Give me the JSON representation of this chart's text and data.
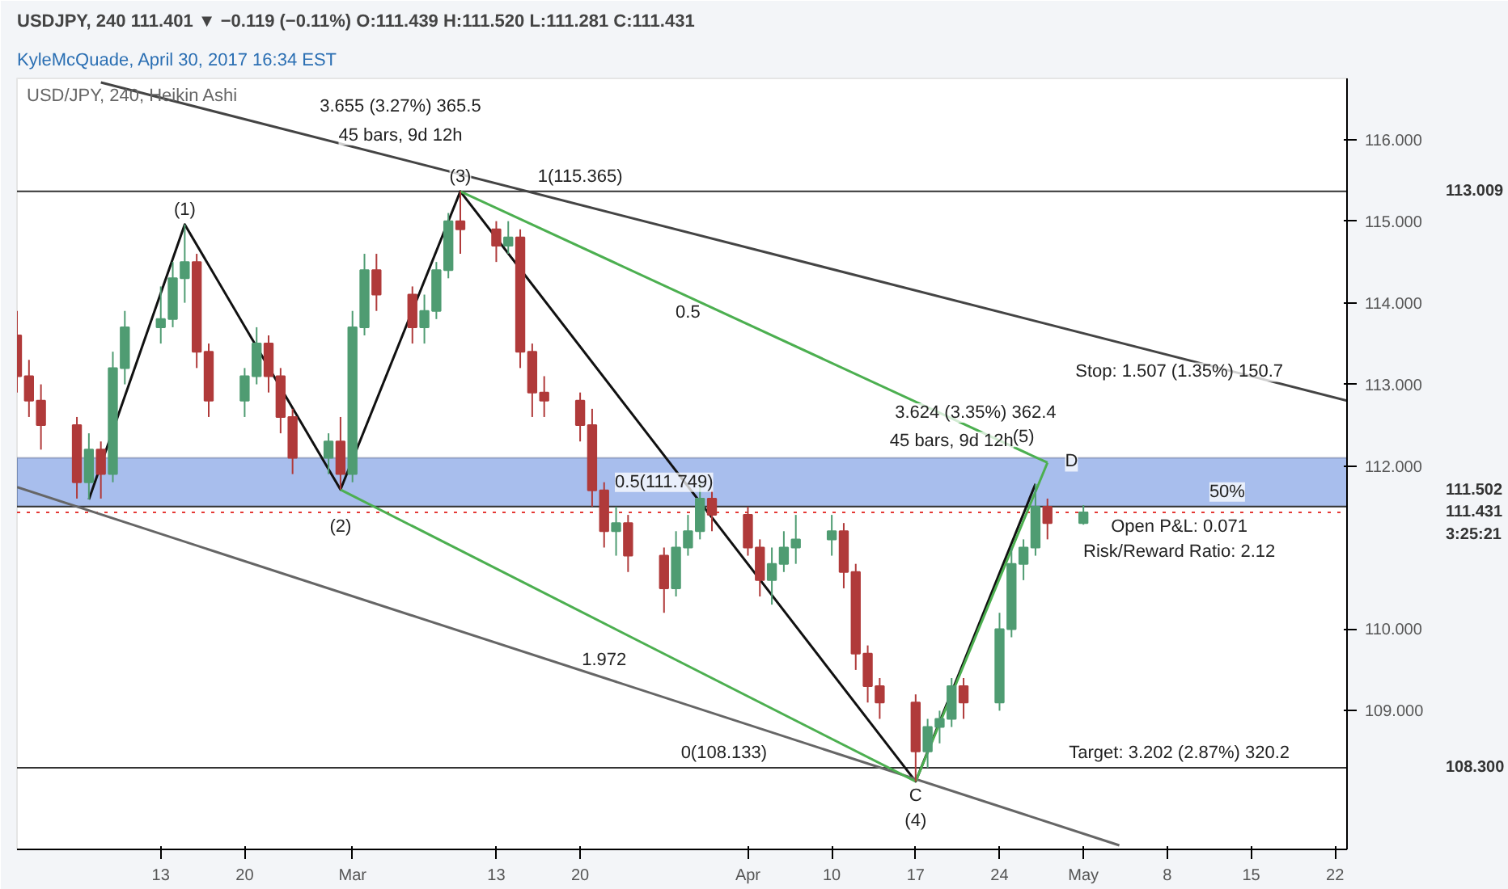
{
  "chart_data": {
    "type": "candlestick",
    "title": "KyleMcQuade, April 30, 2017 16:34 EST",
    "subtitle": "USDJPY, 240 111.401 ▼ −0.119 (−0.11%) O:111.439 H:111.520 L:111.281 C:111.431",
    "x": [
      "2017-02-01",
      "2017-02-02",
      "2017-02-03",
      "2017-02-06",
      "2017-02-07",
      "2017-02-08",
      "2017-02-09",
      "2017-02-10",
      "2017-02-13",
      "2017-02-14",
      "2017-02-15",
      "2017-02-16",
      "2017-02-17",
      "2017-02-20",
      "2017-02-21",
      "2017-02-22",
      "2017-02-23",
      "2017-02-24",
      "2017-02-27",
      "2017-02-28",
      "2017-03-01",
      "2017-03-02",
      "2017-03-03",
      "2017-03-06",
      "2017-03-07",
      "2017-03-08",
      "2017-03-09",
      "2017-03-10",
      "2017-03-13",
      "2017-03-14",
      "2017-03-15",
      "2017-03-16",
      "2017-03-17",
      "2017-03-20",
      "2017-03-21",
      "2017-03-22",
      "2017-03-23",
      "2017-03-24",
      "2017-03-27",
      "2017-03-28",
      "2017-03-29",
      "2017-03-30",
      "2017-03-31",
      "2017-04-03",
      "2017-04-04",
      "2017-04-05",
      "2017-04-06",
      "2017-04-07",
      "2017-04-10",
      "2017-04-11",
      "2017-04-12",
      "2017-04-13",
      "2017-04-14",
      "2017-04-17",
      "2017-04-18",
      "2017-04-19",
      "2017-04-20",
      "2017-04-21",
      "2017-04-24",
      "2017-04-25",
      "2017-04-26",
      "2017-04-27",
      "2017-04-28",
      "2017-05-01"
    ],
    "ohlc": [
      [
        113.6,
        113.9,
        112.9,
        113.1
      ],
      [
        113.1,
        113.3,
        112.6,
        112.8
      ],
      [
        112.8,
        113.0,
        112.2,
        112.5
      ],
      [
        112.5,
        112.6,
        111.6,
        111.8
      ],
      [
        111.8,
        112.4,
        111.59,
        112.2
      ],
      [
        112.2,
        112.3,
        111.6,
        111.9
      ],
      [
        111.9,
        113.4,
        111.8,
        113.2
      ],
      [
        113.2,
        113.9,
        113.0,
        113.7
      ],
      [
        113.7,
        114.2,
        113.5,
        113.8
      ],
      [
        113.8,
        114.5,
        113.7,
        114.3
      ],
      [
        114.3,
        114.96,
        114.0,
        114.5
      ],
      [
        114.5,
        114.6,
        113.2,
        113.4
      ],
      [
        113.4,
        113.5,
        112.6,
        112.8
      ],
      [
        112.8,
        113.2,
        112.6,
        113.1
      ],
      [
        113.1,
        113.7,
        113.0,
        113.5
      ],
      [
        113.5,
        113.6,
        112.9,
        113.1
      ],
      [
        113.1,
        113.2,
        112.4,
        112.6
      ],
      [
        112.6,
        112.7,
        111.9,
        112.1
      ],
      [
        112.1,
        112.4,
        111.9,
        112.3
      ],
      [
        112.3,
        112.6,
        111.71,
        111.9
      ],
      [
        111.9,
        113.9,
        111.8,
        113.7
      ],
      [
        113.7,
        114.6,
        113.6,
        114.4
      ],
      [
        114.4,
        114.6,
        113.9,
        114.1
      ],
      [
        114.1,
        114.2,
        113.5,
        113.7
      ],
      [
        113.7,
        114.1,
        113.5,
        113.9
      ],
      [
        113.9,
        114.5,
        113.8,
        114.4
      ],
      [
        114.4,
        115.1,
        114.3,
        115.0
      ],
      [
        115.0,
        115.365,
        114.6,
        114.9
      ],
      [
        114.9,
        115.0,
        114.5,
        114.7
      ],
      [
        114.7,
        115.0,
        114.6,
        114.8
      ],
      [
        114.8,
        114.9,
        113.2,
        113.4
      ],
      [
        113.4,
        113.5,
        112.6,
        112.9
      ],
      [
        112.9,
        113.1,
        112.6,
        112.8
      ],
      [
        112.8,
        112.9,
        112.3,
        112.5
      ],
      [
        112.5,
        112.7,
        111.5,
        111.7
      ],
      [
        111.7,
        111.8,
        111.0,
        111.2
      ],
      [
        111.2,
        111.5,
        110.9,
        111.3
      ],
      [
        111.3,
        111.4,
        110.7,
        110.9
      ],
      [
        110.9,
        111.0,
        110.2,
        110.5
      ],
      [
        110.5,
        111.2,
        110.4,
        111.0
      ],
      [
        111.0,
        111.4,
        110.9,
        111.2
      ],
      [
        111.2,
        111.8,
        111.1,
        111.6
      ],
      [
        111.6,
        111.7,
        111.2,
        111.4
      ],
      [
        111.4,
        111.5,
        110.9,
        111.0
      ],
      [
        111.0,
        111.1,
        110.4,
        110.6
      ],
      [
        110.6,
        111.0,
        110.3,
        110.8
      ],
      [
        110.8,
        111.2,
        110.7,
        111.0
      ],
      [
        111.0,
        111.4,
        110.8,
        111.1
      ],
      [
        111.1,
        111.4,
        110.9,
        111.2
      ],
      [
        111.2,
        111.3,
        110.5,
        110.7
      ],
      [
        110.7,
        110.8,
        109.5,
        109.7
      ],
      [
        109.7,
        109.8,
        109.1,
        109.3
      ],
      [
        109.3,
        109.4,
        108.9,
        109.1
      ],
      [
        109.1,
        109.2,
        108.133,
        108.5
      ],
      [
        108.5,
        108.9,
        108.3,
        108.8
      ],
      [
        108.8,
        109.0,
        108.6,
        108.9
      ],
      [
        108.9,
        109.4,
        108.8,
        109.3
      ],
      [
        109.3,
        109.4,
        108.9,
        109.1
      ],
      [
        109.1,
        110.2,
        109.0,
        110.0
      ],
      [
        110.0,
        111.0,
        109.9,
        110.8
      ],
      [
        110.8,
        111.1,
        110.6,
        111.0
      ],
      [
        111.0,
        111.78,
        110.9,
        111.5
      ],
      [
        111.5,
        111.6,
        111.1,
        111.3
      ],
      [
        111.3,
        111.52,
        111.28,
        111.43
      ]
    ],
    "colors": [
      "#b03a3a",
      "#b03a3a",
      "#b03a3a",
      "#b03a3a",
      "#4f9c72",
      "#b03a3a",
      "#4f9c72",
      "#4f9c72",
      "#4f9c72",
      "#4f9c72",
      "#4f9c72",
      "#b03a3a",
      "#b03a3a",
      "#4f9c72",
      "#4f9c72",
      "#b03a3a",
      "#b03a3a",
      "#b03a3a",
      "#4f9c72",
      "#b03a3a",
      "#4f9c72",
      "#4f9c72",
      "#b03a3a",
      "#b03a3a",
      "#4f9c72",
      "#4f9c72",
      "#4f9c72",
      "#b03a3a",
      "#b03a3a",
      "#4f9c72",
      "#b03a3a",
      "#b03a3a",
      "#b03a3a",
      "#b03a3a",
      "#b03a3a",
      "#b03a3a",
      "#4f9c72",
      "#b03a3a",
      "#b03a3a",
      "#4f9c72",
      "#4f9c72",
      "#4f9c72",
      "#b03a3a",
      "#b03a3a",
      "#b03a3a",
      "#4f9c72",
      "#4f9c72",
      "#4f9c72",
      "#4f9c72",
      "#b03a3a",
      "#b03a3a",
      "#b03a3a",
      "#b03a3a",
      "#b03a3a",
      "#4f9c72",
      "#4f9c72",
      "#4f9c72",
      "#b03a3a",
      "#4f9c72",
      "#4f9c72",
      "#4f9c72",
      "#4f9c72",
      "#b03a3a",
      "#4f9c72"
    ],
    "series": [
      {
        "type": "line",
        "color": "#111111",
        "x": [
          "2017-02-07",
          "2017-02-15",
          "2017-02-28",
          "2017-03-10",
          "2017-04-17",
          "2017-04-27"
        ],
        "values": [
          111.59,
          114.96,
          111.71,
          115.365,
          108.133,
          111.78
        ]
      },
      {
        "type": "line",
        "color": "#444444",
        "x": [
          "2017-02-08",
          "2017-05-23"
        ],
        "values": [
          116.7,
          112.8
        ]
      },
      {
        "type": "line",
        "color": "#666666",
        "x": [
          "2017-02-01",
          "2017-05-04"
        ],
        "values": [
          111.74,
          107.35
        ]
      },
      {
        "type": "line",
        "color": "#4caf50",
        "x": [
          "2017-02-28",
          "2017-04-17"
        ],
        "values": [
          111.71,
          108.133
        ]
      },
      {
        "type": "line",
        "color": "#4caf50",
        "x": [
          "2017-03-10",
          "2017-04-28"
        ],
        "values": [
          115.365,
          112.04
        ]
      },
      {
        "type": "line",
        "color": "#4caf50",
        "x": [
          "2017-04-17",
          "2017-04-28"
        ],
        "values": [
          108.133,
          112.04
        ]
      }
    ],
    "xlim": [
      "2017-02-01",
      "2017-05-23"
    ],
    "xticks": [
      {
        "value": "2017-02-13",
        "label": "13"
      },
      {
        "value": "2017-02-20",
        "label": "20"
      },
      {
        "value": "2017-03-01",
        "label": "Mar"
      },
      {
        "value": "2017-03-13",
        "label": "13"
      },
      {
        "value": "2017-03-20",
        "label": "20"
      },
      {
        "value": "2017-04-03",
        "label": "Apr"
      },
      {
        "value": "2017-04-10",
        "label": "10"
      },
      {
        "value": "2017-04-17",
        "label": "17"
      },
      {
        "value": "2017-04-24",
        "label": "24"
      },
      {
        "value": "2017-05-01",
        "label": "May"
      },
      {
        "value": "2017-05-08",
        "label": "8"
      },
      {
        "value": "2017-05-15",
        "label": "15"
      },
      {
        "value": "2017-05-22",
        "label": "22"
      }
    ],
    "ylim": [
      107.3,
      116.75
    ],
    "yticks": [
      {
        "value": 109,
        "label": "109.000"
      },
      {
        "value": 110,
        "label": "110.000"
      },
      {
        "value": 112,
        "label": "112.000"
      },
      {
        "value": 113,
        "label": "113.000"
      },
      {
        "value": 114,
        "label": "114.000"
      },
      {
        "value": 115,
        "label": "115.000"
      },
      {
        "value": 116,
        "label": "116.000"
      }
    ],
    "ref_lines": [
      {
        "axis": "y",
        "value": 115.365,
        "label": null,
        "color": "#333333",
        "line_style": "solid"
      },
      {
        "axis": "y",
        "value": 111.502,
        "label": null,
        "color": "#333333",
        "line_style": "solid"
      },
      {
        "axis": "y",
        "value": 108.3,
        "label": null,
        "color": "#333333",
        "line_style": "solid"
      },
      {
        "axis": "y",
        "value": 111.431,
        "label": null,
        "color": "#e53935",
        "line_style": "dotted"
      }
    ],
    "bands": [
      {
        "axis": "y",
        "from": 111.5,
        "to": 112.1,
        "label": null,
        "color": "#3d6fd6"
      }
    ],
    "annotations": [
      "USD/JPY, 240, Heikin Ashi",
      "(2)",
      "(4)",
      "(5)",
      "C",
      "D",
      "3.655 (3.27%) 365.5",
      "45 bars, 9d 12h",
      "3.624 (3.35%) 362.4",
      "45 bars, 9d 12h",
      "0.5(111.749)",
      "0.5",
      "Stop: 1.507 (1.35%) 150.7",
      "Open P&L: 0.071",
      "Risk/Reward Ratio: 2.12",
      "3:25:21",
      "113.009",
      "111.502",
      "111.431",
      "108.300",
      {
        "text": "(1)",
        "x": "2017-02-15",
        "y": 114.96
      },
      {
        "text": "(3)",
        "x": "2017-03-10",
        "y": 115.365
      },
      {
        "text": "1(115.365)",
        "x": "2017-03-20",
        "y": 115.365
      },
      {
        "text": "0(108.133)",
        "x": "2017-04-01",
        "y": 108.3
      },
      {
        "text": "50%",
        "x": "2017-05-13",
        "y": 111.502
      },
      {
        "text": "1.972",
        "x": "2017-03-22",
        "y": 109.5
      },
      {
        "text": "Target: 3.202 (2.87%) 320.2",
        "x": "2017-05-09",
        "y": 108.3
      }
    ],
    "grid": false
  }
}
